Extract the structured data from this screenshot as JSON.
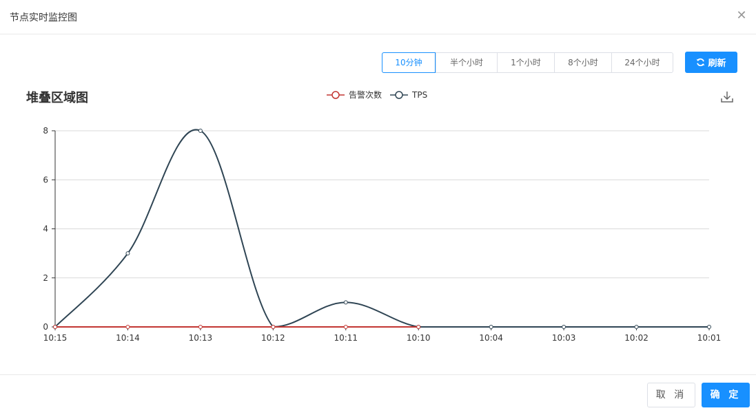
{
  "dialog": {
    "title": "节点实时监控图",
    "close_glyph": "✕"
  },
  "toolbar": {
    "ranges": [
      "10分钟",
      "半个小时",
      "1个小时",
      "8个小时",
      "24个小时"
    ],
    "active_range": "10分钟",
    "refresh_label": "刷新"
  },
  "chart_title": "堆叠区域图",
  "colors": {
    "accent": "#1890ff",
    "alarm": "#c23531",
    "tps": "#2f4554"
  },
  "chart_data": {
    "type": "line",
    "title": "堆叠区域图",
    "categories": [
      "10:15",
      "10:14",
      "10:13",
      "10:12",
      "10:11",
      "10:10",
      "10:04",
      "10:03",
      "10:02",
      "10:01"
    ],
    "series": [
      {
        "name": "告警次数",
        "values": [
          0,
          0,
          0,
          0,
          0,
          0,
          null,
          null,
          null,
          null
        ],
        "color": "#c23531"
      },
      {
        "name": "TPS",
        "values": [
          0,
          3,
          8,
          0,
          1,
          0,
          0,
          0,
          0,
          0
        ],
        "color": "#2f4554"
      }
    ],
    "y_ticks": [
      "0",
      "2",
      "4",
      "6",
      "8"
    ],
    "ylim": [
      0,
      8
    ],
    "grid": true,
    "smooth": true,
    "legend_position": "top-center"
  },
  "footer": {
    "cancel_label": "取 消",
    "ok_label": "确 定"
  }
}
